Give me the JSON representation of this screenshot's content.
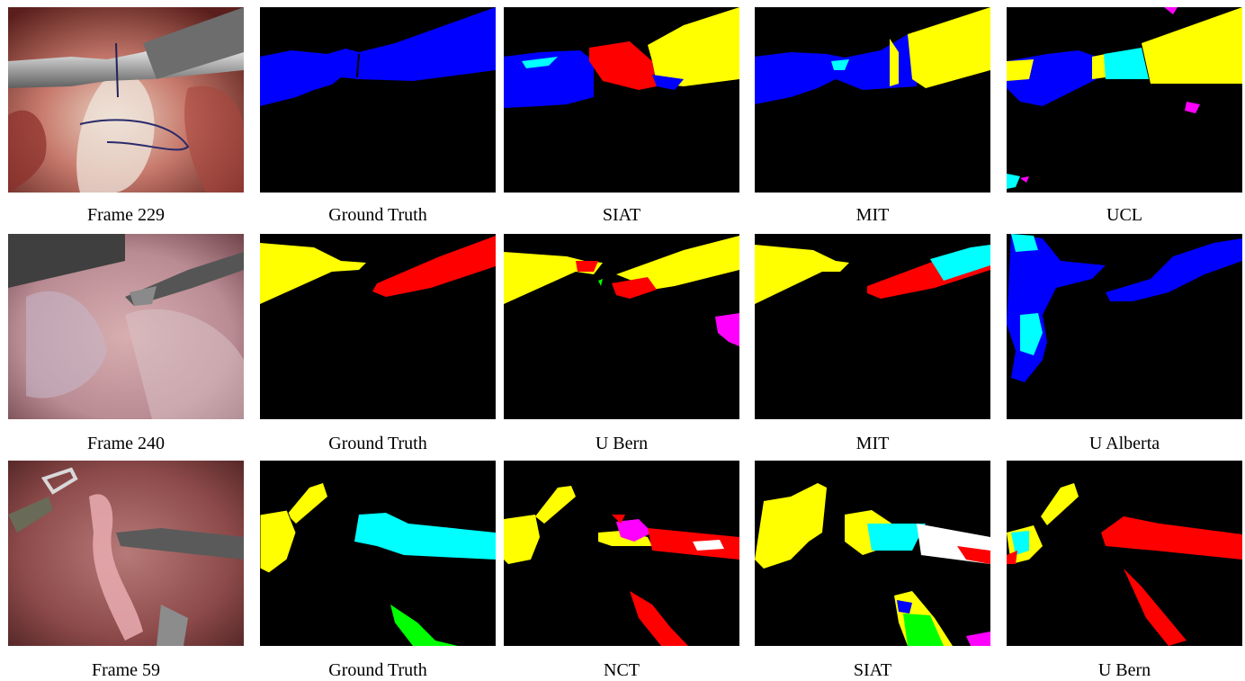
{
  "colors": {
    "blue": "#0000ff",
    "red": "#ff0000",
    "yellow": "#ffff00",
    "cyan": "#00ffff",
    "magenta": "#ff00ff",
    "green": "#00ff00",
    "white": "#ffffff",
    "background": "#000000"
  },
  "rows": [
    {
      "captions": [
        "Frame 229",
        "Ground Truth",
        "SIAT",
        "MIT",
        "UCL"
      ]
    },
    {
      "captions": [
        "Frame 240",
        "Ground Truth",
        "U Bern",
        "MIT",
        "U Alberta"
      ]
    },
    {
      "captions": [
        "Frame 59",
        "Ground Truth",
        "NCT",
        "SIAT",
        "U Bern"
      ]
    }
  ]
}
